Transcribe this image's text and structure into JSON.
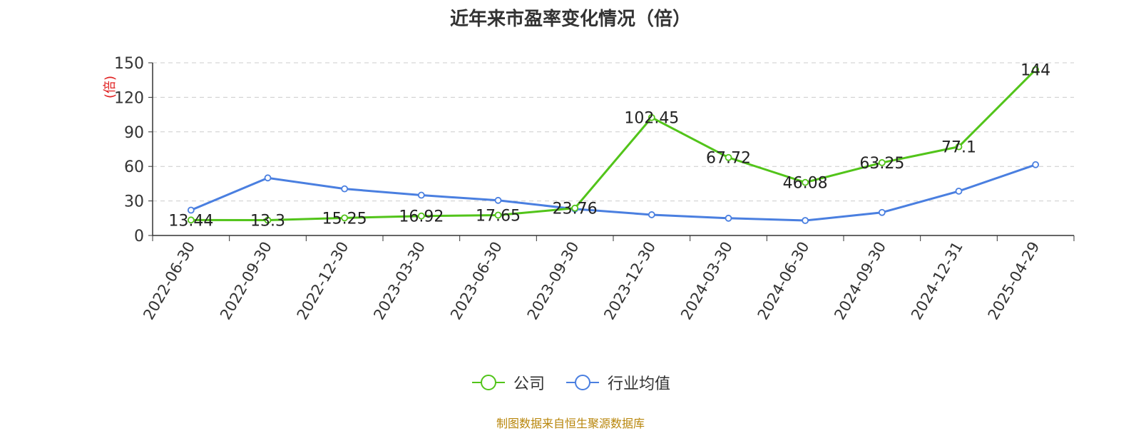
{
  "title": "近年来市盈率变化情况（倍）",
  "source": "制图数据来自恒生聚源数据库",
  "colors": {
    "company": "#52c41a",
    "industry": "#4a7fe0",
    "ylabel": "#e02020"
  },
  "chart_data": {
    "type": "line",
    "categories": [
      "2022-06-30",
      "2022-09-30",
      "2022-12-30",
      "2023-03-30",
      "2023-06-30",
      "2023-09-30",
      "2023-12-30",
      "2024-03-30",
      "2024-06-30",
      "2024-09-30",
      "2024-12-31",
      "2025-04-29"
    ],
    "series": [
      {
        "name": "公司",
        "values": [
          13.44,
          13.3,
          15.25,
          16.92,
          17.65,
          23.76,
          102.45,
          67.72,
          46.08,
          63.25,
          77.1,
          144
        ],
        "labels": [
          "13.44",
          "13.3",
          "15.25",
          "16.92",
          "17.65",
          "23.76",
          "102.45",
          "67.72",
          "46.08",
          "63.25",
          "77.1",
          "144"
        ]
      },
      {
        "name": "行业均值",
        "values": [
          22,
          50,
          40.5,
          35,
          30.5,
          23,
          18,
          15,
          13,
          20,
          38.5,
          61.5
        ]
      }
    ],
    "ylabel": "(倍)",
    "yticks": [
      0,
      30,
      60,
      90,
      120,
      150
    ],
    "ylim": [
      0,
      150
    ],
    "grid": "horizontal-dashed",
    "legend_position": "bottom"
  }
}
